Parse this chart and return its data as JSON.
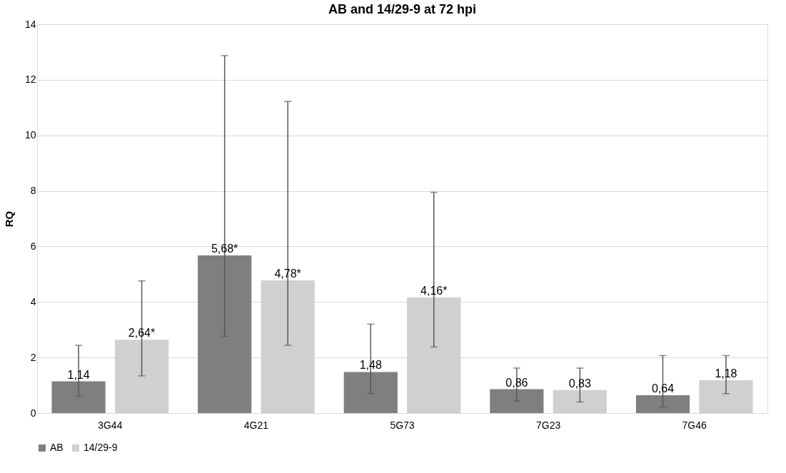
{
  "chart_data": {
    "type": "bar",
    "title": "AB and 14/29-9 at 72 hpi",
    "ylabel": "RQ",
    "categories": [
      "3G44",
      "4G21",
      "5G73",
      "7G23",
      "7G46"
    ],
    "series": [
      {
        "name": "AB",
        "color": "#7f7f7f",
        "values": [
          1.14,
          5.68,
          1.48,
          0.86,
          0.64
        ],
        "errors": [
          [
            0.6,
            2.44
          ],
          [
            2.77,
            12.87
          ],
          [
            0.7,
            3.2
          ],
          [
            0.43,
            1.62
          ],
          [
            0.21,
            2.07
          ]
        ],
        "value_labels": [
          "1,14",
          "5,68*",
          "1,48",
          "0,86",
          "0,64"
        ]
      },
      {
        "name": "14/29-9",
        "color": "#d0d0d0",
        "values": [
          2.64,
          4.78,
          4.16,
          0.83,
          1.18
        ],
        "errors": [
          [
            1.34,
            4.76
          ],
          [
            2.44,
            11.22
          ],
          [
            2.38,
            7.95
          ],
          [
            0.4,
            1.62
          ],
          [
            0.7,
            2.07
          ]
        ],
        "value_labels": [
          "2,64*",
          "4,78*",
          "4,16*",
          "0,83",
          "1,18"
        ]
      }
    ],
    "ylim": [
      0,
      14
    ],
    "yticks": [
      0,
      2,
      4,
      6,
      8,
      10,
      12,
      14
    ],
    "grid": "y",
    "legend": "bottom"
  }
}
